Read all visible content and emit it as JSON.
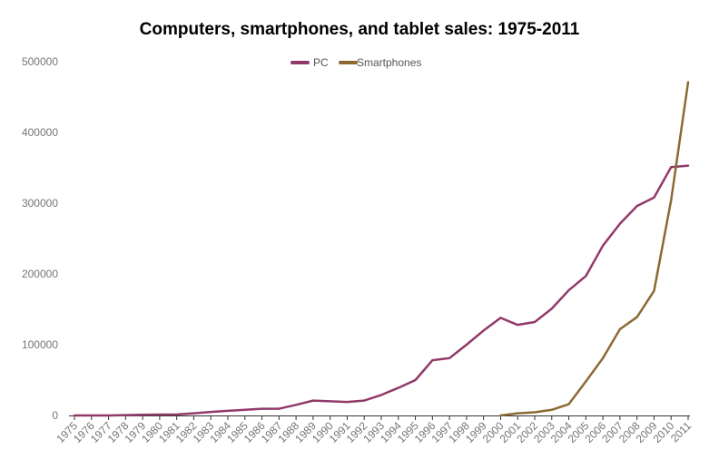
{
  "chart_data": {
    "type": "line",
    "title": "Computers, smartphones, and tablet sales: 1975-2011",
    "xlabel": "",
    "ylabel": "",
    "categories": [
      "1975",
      "1976",
      "1977",
      "1978",
      "1979",
      "1980",
      "1981",
      "1982",
      "1983",
      "1984",
      "1985",
      "1986",
      "1987",
      "1988",
      "1989",
      "1990",
      "1991",
      "1992",
      "1993",
      "1994",
      "1995",
      "1996",
      "1997",
      "1998",
      "1999",
      "2000",
      "2001",
      "2002",
      "2003",
      "2004",
      "2005",
      "2006",
      "2007",
      "2008",
      "2009",
      "2010",
      "2011"
    ],
    "ylim": [
      0,
      500000
    ],
    "yticks": [
      "0",
      "100000",
      "200000",
      "300000",
      "400000",
      "500000"
    ],
    "grid": false,
    "legend_position": "top",
    "series": [
      {
        "name": "PC",
        "color": "#913a6a",
        "values": [
          0,
          0,
          0,
          500,
          1000,
          1200,
          1500,
          3000,
          5000,
          6500,
          8000,
          9500,
          9500,
          15000,
          21000,
          20000,
          19000,
          21000,
          29000,
          39000,
          50000,
          78000,
          81000,
          100000,
          120000,
          138000,
          128000,
          132000,
          151000,
          177000,
          197000,
          240000,
          271000,
          296000,
          308000,
          351000,
          353000
        ]
      },
      {
        "name": "Smartphones",
        "color": "#8b6a32",
        "values": [
          null,
          null,
          null,
          null,
          null,
          null,
          null,
          null,
          null,
          null,
          null,
          null,
          null,
          null,
          null,
          null,
          null,
          null,
          null,
          null,
          null,
          null,
          null,
          null,
          null,
          0,
          3000,
          4500,
          8000,
          16000,
          48000,
          81000,
          122000,
          139000,
          176000,
          304000,
          471000
        ]
      }
    ]
  }
}
